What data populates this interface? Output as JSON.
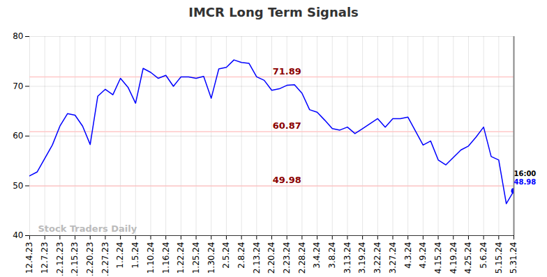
{
  "chart_data": {
    "type": "line",
    "title": "IMCR Long Term Signals",
    "categories": [
      "12.4.23",
      null,
      "12.7.23",
      null,
      "12.12.23",
      null,
      "12.15.23",
      null,
      "12.20.23",
      null,
      "12.27.23",
      null,
      "1.2.24",
      null,
      "1.5.24",
      null,
      "1.10.24",
      null,
      "1.16.24",
      null,
      "1.22.24",
      null,
      "1.25.24",
      null,
      "1.30.24",
      null,
      "2.5.24",
      null,
      "2.8.24",
      null,
      "2.13.24",
      null,
      "2.20.24",
      null,
      "2.23.24",
      null,
      "2.28.24",
      null,
      "3.4.24",
      null,
      "3.8.24",
      null,
      "3.13.24",
      null,
      "3.19.24",
      null,
      "3.22.24",
      null,
      "3.27.24",
      null,
      "4.3.24",
      null,
      "4.9.24",
      null,
      "4.15.24",
      null,
      "4.19.24",
      null,
      "4.25.24",
      null,
      "5.6.24",
      null,
      "5.15.24",
      null,
      "5.31.24"
    ],
    "values": [
      52.0,
      52.8,
      55.5,
      58.2,
      62.0,
      64.5,
      64.2,
      62.0,
      58.3,
      68.0,
      69.4,
      68.3,
      71.6,
      69.8,
      66.6,
      73.6,
      72.8,
      71.6,
      72.2,
      70.0,
      71.9,
      71.9,
      71.6,
      72.0,
      67.6,
      73.5,
      73.8,
      75.3,
      74.8,
      74.6,
      71.9,
      71.2,
      69.2,
      69.5,
      70.2,
      70.3,
      68.6,
      65.3,
      64.8,
      63.2,
      61.5,
      61.2,
      61.8,
      60.5,
      61.5,
      62.5,
      63.5,
      61.8,
      63.5,
      63.5,
      63.8,
      61.0,
      58.2,
      59.0,
      55.2,
      54.2,
      55.7,
      57.2,
      58.0,
      59.8,
      61.8,
      55.9,
      55.2,
      46.4,
      48.98
    ],
    "color": "#0000ff",
    "ylim": [
      40,
      80
    ],
    "yticks": [
      40,
      50,
      60,
      70,
      80
    ],
    "grid": true,
    "levels": [
      71.89,
      60.87,
      49.98
    ],
    "last_time": "16:00",
    "watermark": "Stock Traders Daily"
  }
}
